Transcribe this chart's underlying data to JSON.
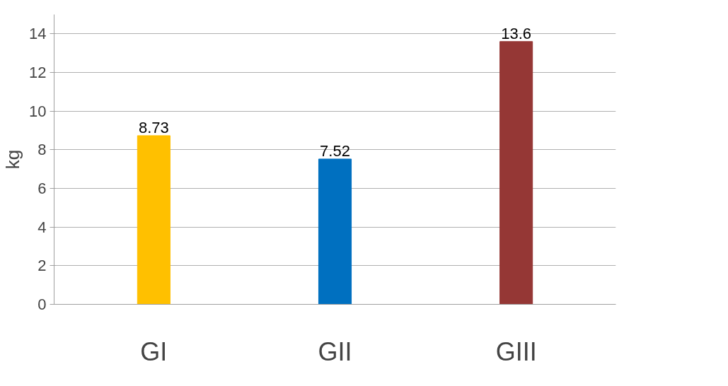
{
  "chart_data": {
    "type": "bar",
    "ylabel": "kg",
    "categories": [
      "GI",
      "GII",
      "GIII"
    ],
    "values": [
      8.73,
      7.52,
      13.6
    ],
    "colors": [
      "#ffc000",
      "#0070c0",
      "#953735"
    ],
    "ylim": [
      0,
      15
    ],
    "yticks": [
      0,
      2,
      4,
      6,
      8,
      10,
      12,
      14
    ],
    "grid": "y",
    "data_labels": true
  }
}
